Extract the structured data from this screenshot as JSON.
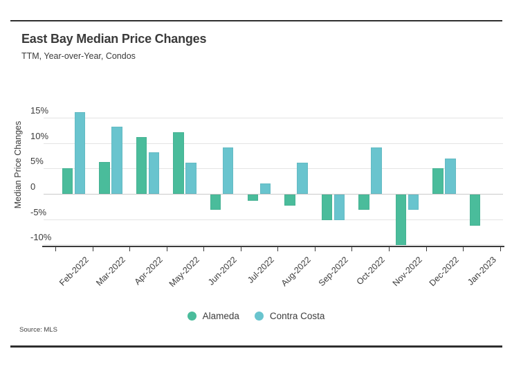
{
  "header": {
    "title": "East Bay Median Price Changes",
    "subtitle": "TTM, Year-over-Year, Condos"
  },
  "footer": {
    "source": "Source: MLS"
  },
  "chart_data": {
    "type": "bar",
    "title": "East Bay Median Price Changes",
    "subtitle": "TTM, Year-over-Year, Condos",
    "xlabel": "",
    "ylabel": "Median Price Changes",
    "units": "percent year-over-year",
    "categories": [
      "Feb-2022",
      "Mar-2022",
      "Apr-2022",
      "May-2022",
      "Jun-2022",
      "Jul-2022",
      "Aug-2022",
      "Sep-2022",
      "Oct-2022",
      "Nov-2022",
      "Dec-2022",
      "Jan-2023"
    ],
    "series": [
      {
        "name": "Alameda",
        "color": "#4abc9b",
        "values": [
          5.0,
          6.3,
          11.2,
          12.1,
          -3.0,
          -1.2,
          -2.2,
          -5.0,
          -3.0,
          -10.0,
          5.0,
          -6.1
        ]
      },
      {
        "name": "Contra Costa",
        "color": "#69c4ce",
        "values": [
          16.1,
          13.2,
          8.2,
          6.1,
          9.2,
          2.1,
          6.1,
          -5.0,
          9.1,
          -3.0,
          7.0,
          null
        ]
      }
    ],
    "y_ticks": [
      {
        "label": "15%",
        "value": 15
      },
      {
        "label": "10%",
        "value": 10
      },
      {
        "label": "5%",
        "value": 5
      },
      {
        "label": "0",
        "value": 0
      },
      {
        "label": "-5%",
        "value": -5
      },
      {
        "label": "-10%",
        "value": -10
      }
    ],
    "ylim": [
      -12.5,
      17.5
    ],
    "grid": true,
    "legend_position": "bottom",
    "style_colors": {
      "gridline": "#e4e4e4",
      "zero_line": "#c9c9c9",
      "axis": "#3a3a3a",
      "text": "#3b3b3b",
      "rule": "#2e2e2e",
      "background": "#ffffff"
    }
  }
}
